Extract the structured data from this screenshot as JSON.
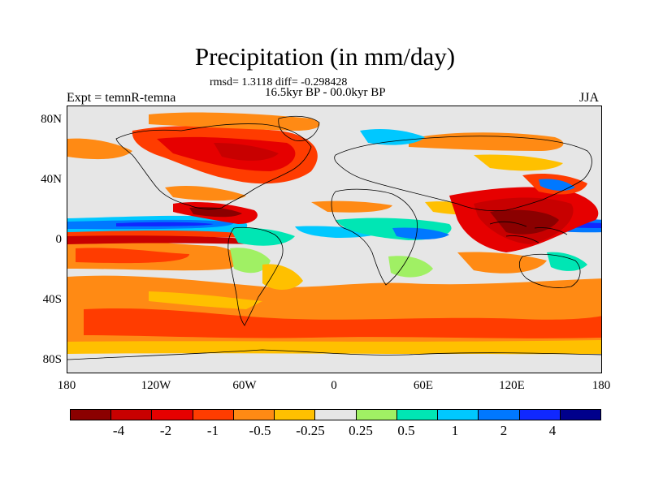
{
  "chart_data": {
    "type": "heatmap",
    "title": "Precipitation (in mm/day)",
    "stats_line": "rmsd= 1.3118 diff= -0.298428",
    "period": "16.5kyr BP - 00.0kyr BP",
    "experiment": "Expt = temnR-temna",
    "season": "JJA",
    "variable": "Precipitation difference",
    "units": "mm/day",
    "rmsd": 1.3118,
    "diff": -0.298428,
    "x_axis": {
      "range": [
        -180,
        180
      ],
      "ticks": [
        {
          "value": -180,
          "label": "180"
        },
        {
          "value": -120,
          "label": "120W"
        },
        {
          "value": -60,
          "label": "60W"
        },
        {
          "value": 0,
          "label": "0"
        },
        {
          "value": 60,
          "label": "60E"
        },
        {
          "value": 120,
          "label": "120E"
        },
        {
          "value": 180,
          "label": "180"
        }
      ]
    },
    "y_axis": {
      "range": [
        -90,
        90
      ],
      "ticks": [
        {
          "value": 80,
          "label": "80N"
        },
        {
          "value": 40,
          "label": "40N"
        },
        {
          "value": 0,
          "label": "0"
        },
        {
          "value": -40,
          "label": "40S"
        },
        {
          "value": -80,
          "label": "80S"
        }
      ]
    },
    "colorbar": {
      "colors": [
        "#8b0000",
        "#c80000",
        "#e60000",
        "#ff3c00",
        "#ff8a14",
        "#ffc000",
        "#e6e6e6",
        "#a0f064",
        "#00e6b4",
        "#00c8ff",
        "#0078ff",
        "#1028ff",
        "#00008c"
      ],
      "labels": [
        "-4",
        "-2",
        "-1",
        "-0.5",
        "-0.25",
        "0.25",
        "0.5",
        "1",
        "2",
        "4"
      ]
    }
  }
}
